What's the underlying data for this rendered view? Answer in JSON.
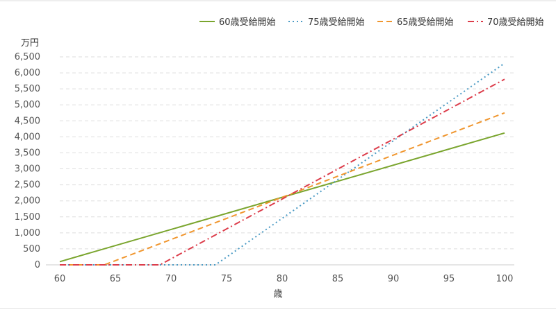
{
  "chart_data": {
    "type": "line",
    "title": "",
    "ylabel": "万円",
    "xlabel": "歳",
    "xlim": [
      60,
      100
    ],
    "ylim": [
      0,
      6500
    ],
    "xticks": [
      60,
      65,
      70,
      75,
      80,
      85,
      90,
      95,
      100
    ],
    "yticks": [
      0,
      500,
      1000,
      1500,
      2000,
      2500,
      3000,
      3500,
      4000,
      4500,
      5000,
      5500,
      6000,
      6500
    ],
    "ytick_labels": [
      "0",
      "500",
      "1,000",
      "1,500",
      "2,000",
      "2,500",
      "3,000",
      "3,500",
      "4,000",
      "4,500",
      "5,000",
      "5,500",
      "6,000",
      "6,500"
    ],
    "grid": true,
    "legend_position": "top-right",
    "series": [
      {
        "name": "60歳受給開始",
        "color": "#7aa52e",
        "dash": "solid",
        "points": [
          [
            60,
            100
          ],
          [
            100,
            4120
          ]
        ]
      },
      {
        "name": "75歳受給開始",
        "color": "#4a9ac4",
        "dash": "dotted",
        "points": [
          [
            60,
            0
          ],
          [
            74,
            0
          ],
          [
            100,
            6300
          ]
        ]
      },
      {
        "name": "65歳受給開始",
        "color": "#f0962e",
        "dash": "dashed",
        "points": [
          [
            60,
            0
          ],
          [
            64,
            0
          ],
          [
            100,
            4750
          ]
        ]
      },
      {
        "name": "70歳受給開始",
        "color": "#dc3c4a",
        "dash": "dashdot",
        "points": [
          [
            60,
            0
          ],
          [
            69,
            0
          ],
          [
            100,
            5800
          ]
        ]
      }
    ]
  }
}
